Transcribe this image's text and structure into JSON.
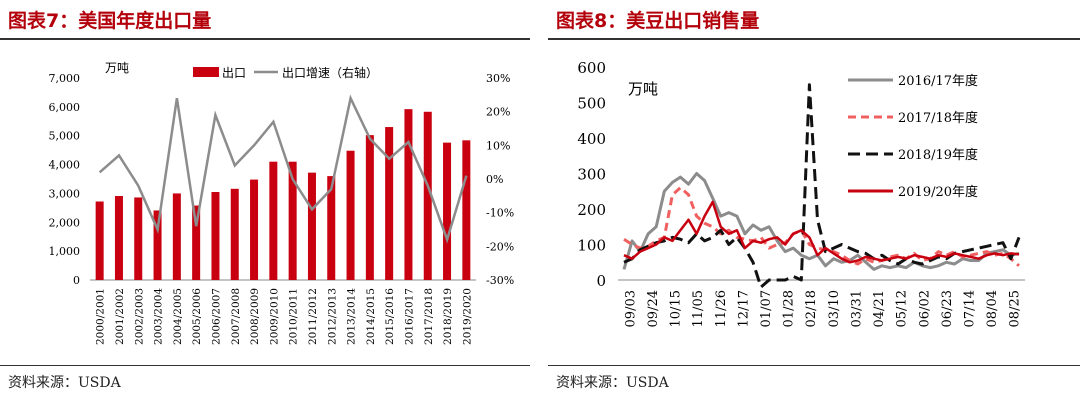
{
  "left_panel": {
    "title": "图表7：美国年度出口量",
    "source": "资料来源：USDA"
  },
  "right_panel": {
    "title": "图表8：美豆出口销售量",
    "source": "资料来源：USDA"
  },
  "colors": {
    "accent": "#b3000b",
    "bar": "#c8000f",
    "line_grey": "#8c8c8c",
    "series_2017": "#f06060",
    "series_2018": "#111111",
    "series_2019": "#c8000f"
  },
  "chart_data": [
    {
      "type": "bar",
      "unit_label": "万吨",
      "categories": [
        "2000/2001",
        "2001/2002",
        "2002/2003",
        "2003/2004",
        "2004/2005",
        "2005/2006",
        "2006/2007",
        "2007/2008",
        "2008/2009",
        "2009/2010",
        "2010/2011",
        "2011/2012",
        "2012/2013",
        "2013/2014",
        "2014/2015",
        "2015/2016",
        "2016/2017",
        "2017/2018",
        "2018/2019",
        "2019/2020"
      ],
      "series": [
        {
          "name": "出口",
          "axis": "left",
          "kind": "bar",
          "values": [
            2720,
            2910,
            2860,
            2410,
            3000,
            2580,
            3050,
            3160,
            3480,
            4100,
            4100,
            3720,
            3600,
            4480,
            5020,
            5300,
            5920,
            5830,
            4760,
            4840
          ]
        },
        {
          "name": "出口增速（右轴）",
          "axis": "right",
          "kind": "line",
          "values": [
            2,
            7,
            -2,
            -15,
            24,
            -14,
            19,
            4,
            10,
            17,
            0,
            -9,
            -3,
            24,
            12,
            6,
            11,
            -2,
            -18,
            1
          ]
        }
      ],
      "y_left": {
        "min": 0,
        "max": 7000,
        "ticks": [
          "0",
          "1,000",
          "2,000",
          "3,000",
          "4,000",
          "5,000",
          "6,000",
          "7,000"
        ]
      },
      "y_right": {
        "min": -30,
        "max": 30,
        "ticks": [
          "-30%",
          "-20%",
          "-10%",
          "0%",
          "10%",
          "20%",
          "30%"
        ]
      },
      "legend_position": "top"
    },
    {
      "type": "line",
      "unit_label": "万吨",
      "x_ticks": [
        "09/03",
        "09/24",
        "10/15",
        "11/05",
        "11/26",
        "12/17",
        "01/07",
        "01/28",
        "02/18",
        "03/10",
        "03/31",
        "04/21",
        "05/12",
        "06/02",
        "06/23",
        "07/14",
        "08/04",
        "08/25"
      ],
      "y": {
        "min": 0,
        "max": 600,
        "ticks": [
          "0",
          "100",
          "200",
          "300",
          "400",
          "500",
          "600"
        ]
      },
      "series": [
        {
          "name": "2016/17年度",
          "style": "solid-grey",
          "values": [
            30,
            110,
            80,
            130,
            150,
            250,
            275,
            290,
            270,
            300,
            280,
            230,
            180,
            190,
            180,
            130,
            155,
            140,
            150,
            110,
            80,
            90,
            70,
            60,
            70,
            40,
            60,
            50,
            55,
            70,
            50,
            30,
            40,
            35,
            40,
            35,
            50,
            40,
            35,
            40,
            50,
            45,
            60,
            55,
            55,
            75,
            80,
            85,
            70,
            75
          ]
        },
        {
          "name": "2017/18年度",
          "style": "dash-pink",
          "values": [
            115,
            100,
            90,
            95,
            110,
            120,
            240,
            260,
            240,
            180,
            160,
            150,
            130,
            140,
            120,
            115,
            110,
            120,
            90,
            100,
            105,
            130,
            140,
            100,
            90,
            85,
            80,
            70,
            55,
            45,
            60,
            50,
            55,
            65,
            70,
            60,
            75,
            55,
            60,
            80,
            70,
            80,
            65,
            70,
            75,
            80,
            70,
            75,
            60,
            40
          ]
        },
        {
          "name": "2018/19年度",
          "style": "dash-black",
          "values": [
            50,
            60,
            85,
            95,
            105,
            110,
            120,
            115,
            105,
            130,
            110,
            120,
            140,
            100,
            120,
            90,
            50,
            -20,
            0,
            0,
            0,
            10,
            0,
            550,
            170,
            80,
            90,
            100,
            90,
            80,
            75,
            60,
            70,
            55,
            45,
            60,
            50,
            45,
            55,
            65,
            60,
            75,
            80,
            85,
            90,
            95,
            100,
            105,
            60,
            120
          ]
        },
        {
          "name": "2019/20年度",
          "style": "solid-red",
          "values": [
            70,
            60,
            80,
            90,
            100,
            120,
            110,
            140,
            170,
            130,
            180,
            220,
            150,
            130,
            140,
            90,
            110,
            105,
            115,
            120,
            100,
            130,
            140,
            120,
            70,
            90,
            75,
            60,
            50,
            55,
            65,
            60,
            55,
            60,
            65,
            60,
            70,
            65,
            60,
            70,
            65,
            75,
            70,
            65,
            60,
            70,
            75,
            70,
            75,
            72
          ]
        }
      ],
      "legend_position": "right"
    }
  ]
}
